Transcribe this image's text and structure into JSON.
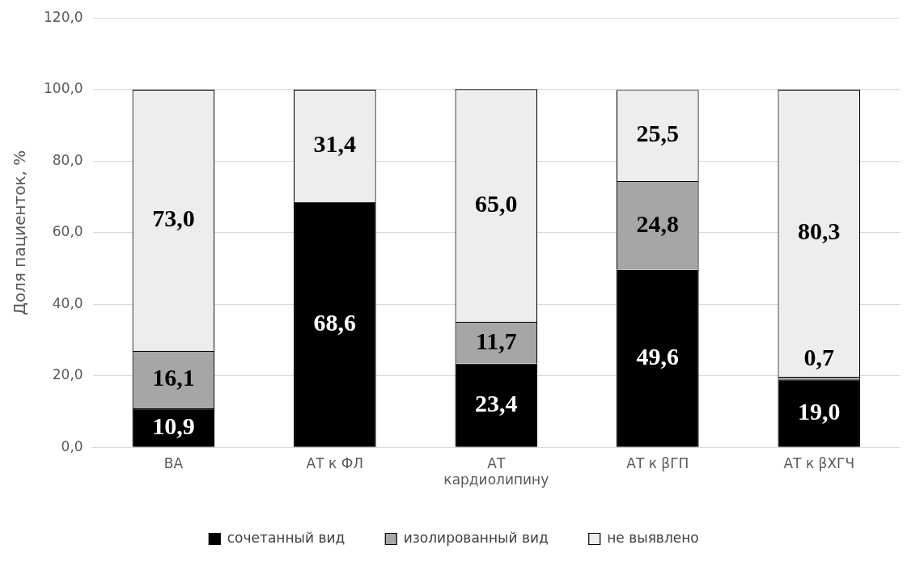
{
  "chart_data": {
    "type": "bar",
    "stacked": true,
    "ylabel": "Доля пациенток, %",
    "categories": [
      "ВА",
      "АТ к ФЛ",
      "АТ кардиолипину",
      "АТ к βГП",
      "АТ к βХГЧ"
    ],
    "series": [
      {
        "name": "сочетанный вид",
        "color": "#000000",
        "values": [
          10.9,
          68.6,
          23.4,
          49.6,
          19.0
        ],
        "value_labels": [
          "10,9",
          "68,6",
          "23,4",
          "49,6",
          "19,0"
        ]
      },
      {
        "name": "изолированный вид",
        "color": "#a6a6a6",
        "values": [
          16.1,
          null,
          11.7,
          24.8,
          0.7
        ],
        "value_labels": [
          "16,1",
          null,
          "11,7",
          "24,8",
          "0,7"
        ]
      },
      {
        "name": "не выявлено",
        "color": "#ededed",
        "values": [
          73.0,
          31.4,
          65.0,
          25.5,
          80.3
        ],
        "value_labels": [
          "73,0",
          "31,4",
          "65,0",
          "25,5",
          "80,3"
        ]
      }
    ],
    "ylim": [
      0,
      120
    ],
    "yticks": [
      {
        "value": 0,
        "label": "0,0"
      },
      {
        "value": 20,
        "label": "20,0"
      },
      {
        "value": 40,
        "label": "40,0"
      },
      {
        "value": 60,
        "label": "60,0"
      },
      {
        "value": 80,
        "label": "80,0"
      },
      {
        "value": 100,
        "label": "100,0"
      },
      {
        "value": 120,
        "label": "120,0"
      }
    ],
    "grid": "y",
    "legend": "bottom"
  }
}
